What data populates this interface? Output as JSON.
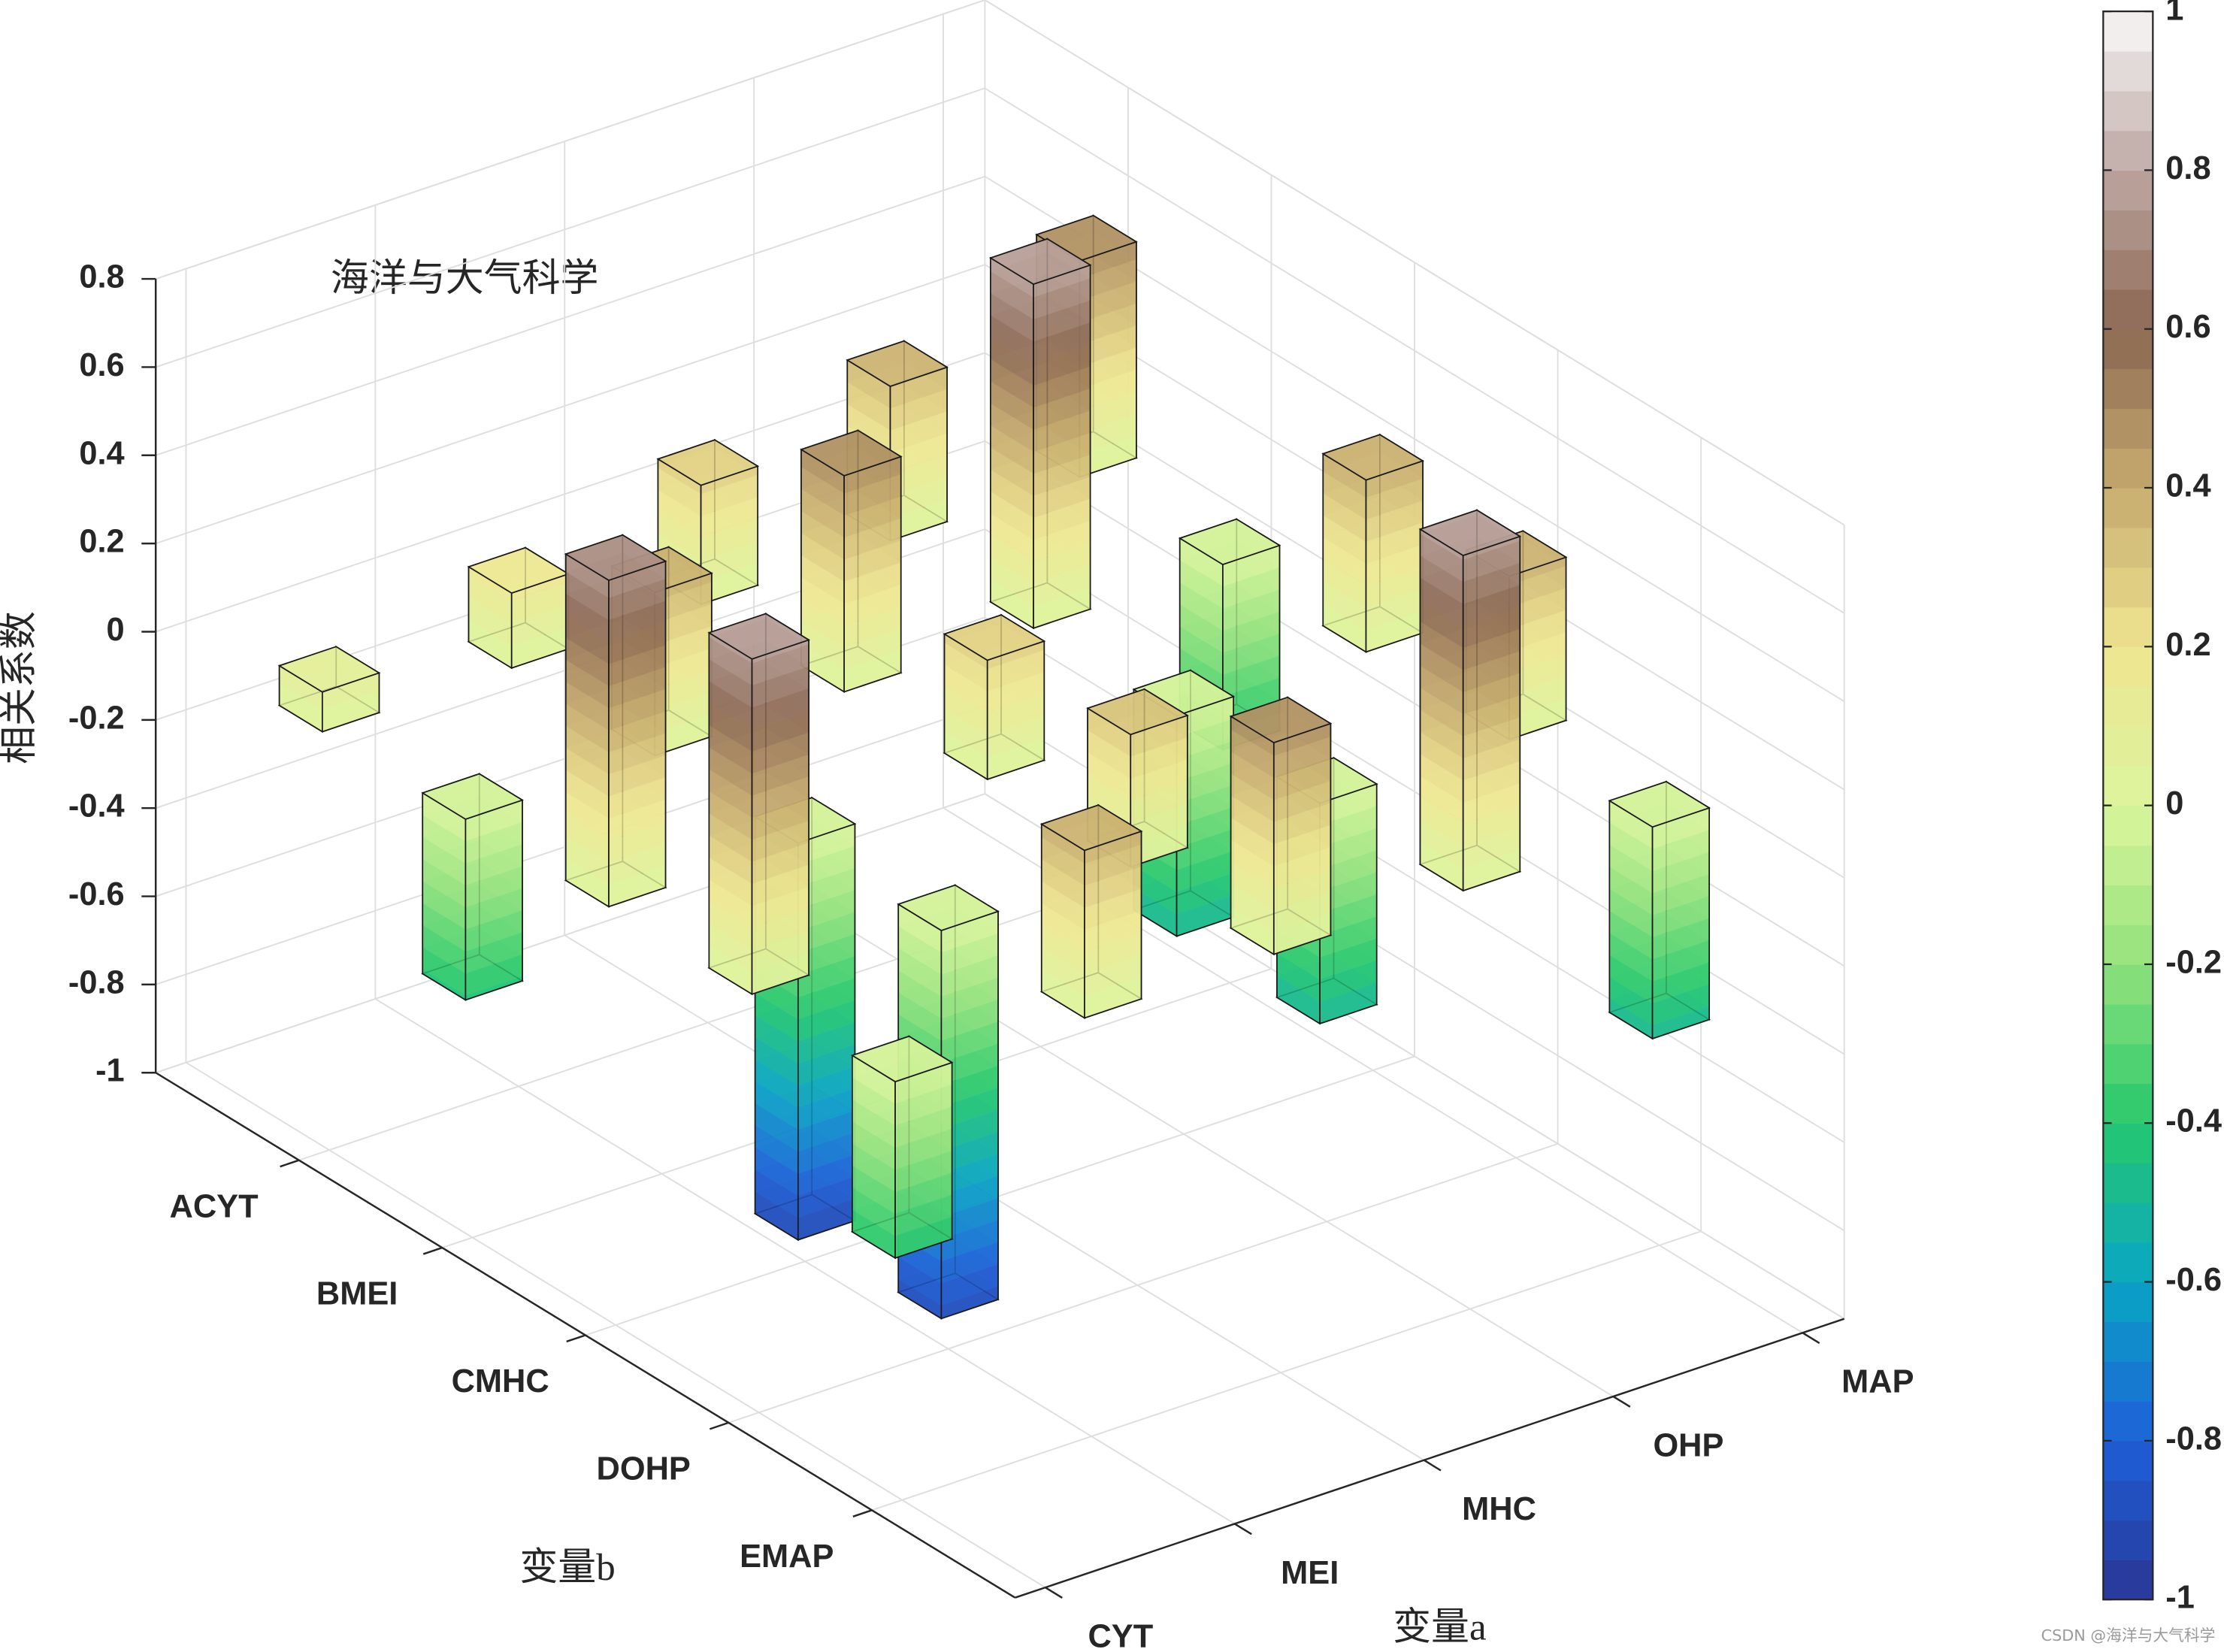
{
  "chart_data": {
    "type": "bar3",
    "title": "海洋与大气科学",
    "x_label": "变量a",
    "y_label": "变量b",
    "z_label": "相关系数",
    "x_categories": [
      "CYT",
      "MEI",
      "MHC",
      "OHP",
      "MAP"
    ],
    "y_categories": [
      "ACYT",
      "BMEI",
      "CMHC",
      "DOHP",
      "EMAP"
    ],
    "values": [
      [
        0.09,
        0.17,
        0.27,
        0.35,
        0.49
      ],
      [
        -0.41,
        0.37,
        0.49,
        0.78,
        -0.42
      ],
      [
        0.74,
        -0.9,
        0.27,
        -0.5,
        0.39
      ],
      [
        0.76,
        -0.88,
        0.3,
        -0.5,
        0.37
      ],
      [
        -0.4,
        0.38,
        0.48,
        0.76,
        -0.48
      ]
    ],
    "zlim": [
      -1,
      0.8
    ],
    "zticks": [
      -1,
      -0.8,
      -0.6,
      -0.4,
      -0.2,
      0,
      0.2,
      0.4,
      0.6,
      0.8
    ],
    "grid": true,
    "colorbar": {
      "clim": [
        -1,
        1
      ],
      "ticks": [
        -1,
        -0.8,
        -0.6,
        -0.4,
        -0.2,
        0,
        0.2,
        0.4,
        0.6,
        0.8,
        1
      ],
      "colormap": [
        "#2b3796",
        "#1d5fd8",
        "#0aa6c4",
        "#25c86c",
        "#92e27c",
        "#dcf59c",
        "#efe590",
        "#c6ab6e",
        "#8a6752",
        "#bea8a3",
        "#f8f8f8"
      ],
      "levels": 40
    },
    "watermark": "CSDN @海洋与大气科学"
  }
}
